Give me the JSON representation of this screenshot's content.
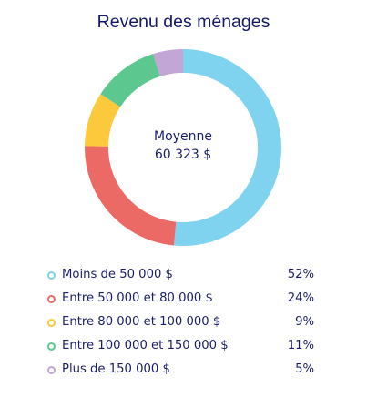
{
  "chart_data": {
    "type": "pie",
    "title": "Revenu des ménages",
    "center_label": "Moyenne",
    "center_value": "60 323 $",
    "categories": [
      "Moins de 50 000 $",
      "Entre 50 000 et 80 000 $",
      "Entre 80 000 et 100 000 $",
      "Entre 100 000 et 150 000 $",
      "Plus de 150 000 $"
    ],
    "values": [
      52,
      24,
      9,
      11,
      5
    ],
    "value_labels": [
      "52%",
      "24%",
      "9%",
      "11%",
      "5%"
    ],
    "colors": [
      "#7fd3ef",
      "#ec6a66",
      "#fcc83c",
      "#5cc78e",
      "#c2a6d6"
    ],
    "legend_position": "bottom"
  }
}
